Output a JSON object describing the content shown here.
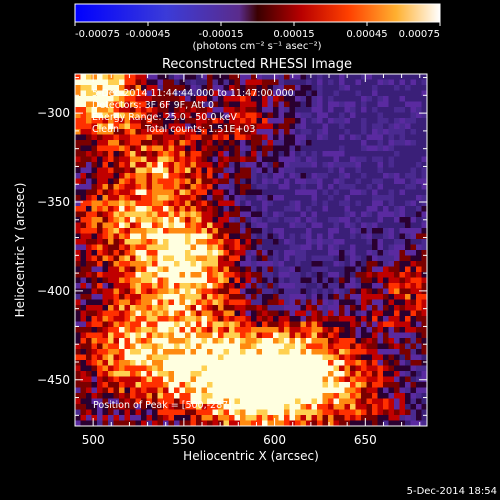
{
  "chart_data": {
    "type": "heatmap",
    "title": "Reconstructed RHESSI Image",
    "xlabel": "Heliocentric X (arcsec)",
    "ylabel": "Heliocentric Y (arcsec)",
    "xlim": [
      490,
      684
    ],
    "ylim": [
      -476,
      -278
    ],
    "xticks": [
      500,
      550,
      600,
      650
    ],
    "yticks": [
      -300,
      -350,
      -400,
      -450
    ],
    "colorbar": {
      "ticks": [
        "-0.00075",
        "-0.00045",
        "-0.00015",
        "0.00015",
        "0.00045",
        "0.00075"
      ],
      "range": [
        -0.00075,
        0.00075
      ],
      "unit_label": "(photons cm⁻² s⁻¹ asec⁻²)"
    },
    "annotations": {
      "time_range": "5-Dec-2014 11:44:44.000 to 11:47:00.000",
      "detectors": "Detectors: 3F 6F 9F, Att 0",
      "energy": "Energy Range: 25.0 - 50.0 keV",
      "clean": "Clean",
      "counts": "Total counts: 1.51E+03",
      "peak": "Position of Peak = [500,-287]"
    },
    "hot_spots": [
      {
        "x": 500,
        "y": -287,
        "v": 1.0
      },
      {
        "x": 552,
        "y": -383,
        "v": 0.9
      },
      {
        "x": 598,
        "y": -452,
        "v": 0.95
      },
      {
        "x": 520,
        "y": -430,
        "v": 0.6
      },
      {
        "x": 540,
        "y": -330,
        "v": 0.55
      },
      {
        "x": 560,
        "y": -445,
        "v": 0.7
      },
      {
        "x": 625,
        "y": -440,
        "v": 0.5
      },
      {
        "x": 675,
        "y": -400,
        "v": 0.55
      },
      {
        "x": 510,
        "y": -360,
        "v": 0.45
      },
      {
        "x": 585,
        "y": -300,
        "v": 0.45
      },
      {
        "x": 650,
        "y": -465,
        "v": 0.4
      }
    ]
  },
  "timestamp": "5-Dec-2014 18:54"
}
